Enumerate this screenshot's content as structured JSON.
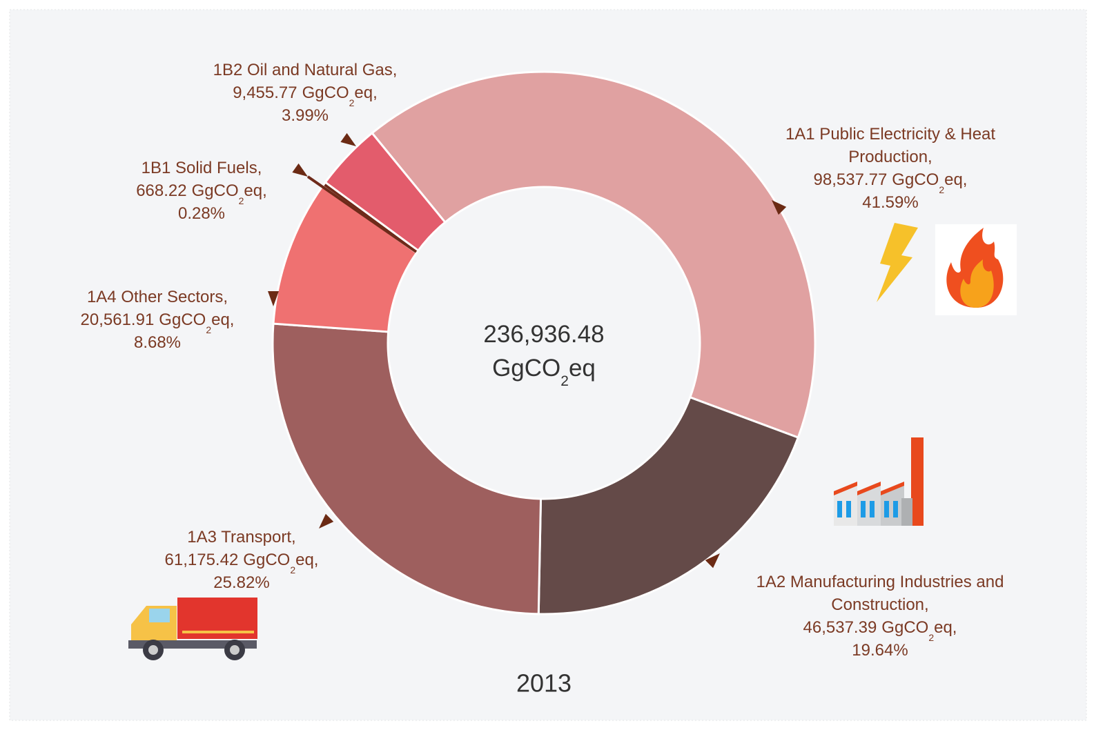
{
  "chart_data": {
    "type": "pie",
    "title": "2013",
    "categories": [
      "1A1 Public Electricity & Heat Production,",
      "1A2 Manufacturing Industries and Construction,",
      "1A3 Transport,",
      "1A4 Other Sectors,",
      "1B1 Solid Fuels,",
      "1B2 Oil and Natural Gas,"
    ],
    "values": [
      98537.77,
      46537.39,
      61175.42,
      20561.91,
      668.22,
      9455.77
    ],
    "value_labels": [
      "98,537.77",
      "46,537.39",
      "61,175.42",
      "20,561.91",
      "668.22",
      "9,455.77"
    ],
    "percents": [
      41.59,
      19.64,
      25.82,
      8.68,
      0.28,
      3.99
    ],
    "percent_labels": [
      "41.59%",
      "19.64%",
      "25.82%",
      "8.68%",
      "0.28%",
      "3.99%"
    ],
    "colors": [
      "#e0a1a1",
      "#644a48",
      "#9e5f5e",
      "#ef7171",
      "#6e2a1a",
      "#e35c6c"
    ],
    "label_unit": [
      "GgCO",
      "2",
      "eq,"
    ],
    "total": 236936.48,
    "total_label": "236,936.48",
    "center_unit": [
      "GgCO",
      "2",
      "eq"
    ],
    "donut": true
  }
}
